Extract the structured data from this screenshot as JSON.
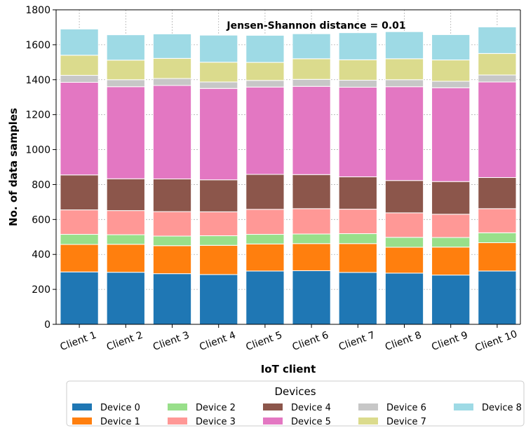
{
  "chart_data": {
    "type": "bar",
    "stacked": true,
    "categories": [
      "Client 1",
      "Client 2",
      "Client 3",
      "Client 4",
      "Client 5",
      "Client 6",
      "Client 7",
      "Client 8",
      "Client 9",
      "Client 10"
    ],
    "series": [
      {
        "name": "Device 0",
        "color": "#1f77b4",
        "values": [
          300,
          298,
          290,
          285,
          305,
          307,
          297,
          293,
          282,
          305
        ]
      },
      {
        "name": "Device 1",
        "color": "#ff7f0e",
        "values": [
          157,
          160,
          160,
          167,
          155,
          155,
          165,
          148,
          160,
          162
        ]
      },
      {
        "name": "Device 2",
        "color": "#98df8a",
        "values": [
          58,
          55,
          55,
          55,
          55,
          55,
          57,
          57,
          55,
          57
        ]
      },
      {
        "name": "Device 3",
        "color": "#ff9896",
        "values": [
          140,
          138,
          140,
          137,
          143,
          145,
          140,
          140,
          133,
          138
        ]
      },
      {
        "name": "Device 4",
        "color": "#8c564b",
        "values": [
          200,
          182,
          187,
          183,
          200,
          195,
          185,
          185,
          187,
          178
        ]
      },
      {
        "name": "Device 5",
        "color": "#e377c2",
        "values": [
          530,
          527,
          535,
          523,
          500,
          505,
          513,
          537,
          537,
          547
        ]
      },
      {
        "name": "Device 6",
        "color": "#c7c7c7",
        "values": [
          40,
          40,
          40,
          37,
          38,
          40,
          40,
          40,
          37,
          40
        ]
      },
      {
        "name": "Device 7",
        "color": "#dbdb8d",
        "values": [
          115,
          112,
          115,
          113,
          103,
          118,
          117,
          120,
          122,
          123
        ]
      },
      {
        "name": "Device 8",
        "color": "#9edae5",
        "values": [
          150,
          145,
          140,
          155,
          155,
          143,
          155,
          155,
          145,
          152
        ]
      }
    ],
    "title": "",
    "annotation": "Jensen-Shannon distance = 0.01",
    "xlabel": "IoT client",
    "ylabel": "No. of data samples",
    "ylim": [
      0,
      1800
    ],
    "yticks": [
      0,
      200,
      400,
      600,
      800,
      1000,
      1200,
      1400,
      1600,
      1800
    ],
    "grid": true,
    "legend": {
      "title": "Devices",
      "placement": "bottom",
      "columns": 5
    }
  }
}
